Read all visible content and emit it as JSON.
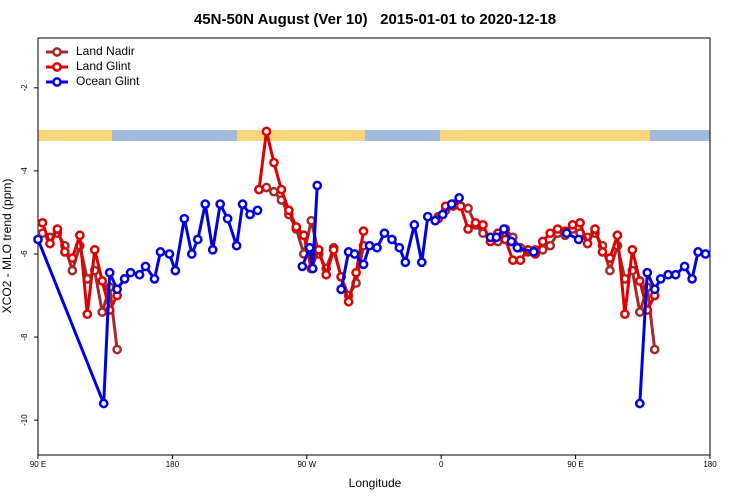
{
  "chart_data": {
    "type": "line",
    "title": "45N-50N August (Ver 10)   2015-01-01 to 2020-12-18",
    "x_label": "Longitude",
    "y_label": "XCO2 - MLO trend (ppm)",
    "xlim": [
      90,
      540
    ],
    "ylim": [
      -10.84,
      -0.8
    ],
    "xticks": [
      {
        "value": 90,
        "label": "90 E"
      },
      180,
      {
        "value": 270,
        "label": "90 W"
      },
      {
        "value": 360,
        "label": "0"
      },
      {
        "value": 450,
        "label": "90 E"
      },
      {
        "value": 540,
        "label": "180"
      }
    ],
    "yticks": [
      -2,
      -4,
      -6,
      -8,
      -10
    ],
    "legend": "upper left",
    "series": [
      {
        "name": "Land Nadir",
        "color": "#a52a2a",
        "x": [
          93,
          98,
          103,
          108,
          113,
          118,
          123,
          128,
          133,
          138,
          143,
          190,
          238,
          243,
          248,
          253,
          258,
          263,
          268,
          273,
          278,
          283,
          288,
          293,
          298,
          303,
          308,
          333,
          358,
          363,
          368,
          373,
          378,
          383,
          388,
          393,
          398,
          403,
          408,
          413,
          418,
          423,
          428,
          433,
          438,
          443,
          448,
          453,
          458,
          463,
          468,
          473,
          478,
          483,
          488,
          493,
          498,
          503
        ],
        "values": [
          -5.5,
          -5.6,
          -5.5,
          -5.8,
          -6.4,
          -5.8,
          -6.6,
          -6.4,
          -7.4,
          -6.8,
          -8.3,
          null,
          -4.45,
          -4.4,
          -4.5,
          -4.7,
          -5.05,
          -5.4,
          -6.0,
          -5.2,
          -6.0,
          -6.35,
          -5.85,
          -6.55,
          -7.0,
          -6.7,
          -5.8,
          null,
          -5.1,
          -4.95,
          -4.85,
          -4.85,
          -4.9,
          -5.3,
          -5.5,
          -5.6,
          -5.7,
          -5.4,
          -5.6,
          -5.85,
          -5.95,
          -5.9,
          -5.9,
          -5.8,
          -5.5,
          -5.55,
          -5.4,
          -5.5,
          -5.6,
          -5.5,
          -5.8,
          -6.4,
          -5.8,
          -6.6,
          -6.4,
          -7.4,
          -6.8,
          -8.3
        ]
      },
      {
        "name": "Land Glint",
        "color": "#e00000",
        "x": [
          93,
          98,
          103,
          108,
          113,
          118,
          123,
          128,
          133,
          138,
          143,
          190,
          238,
          243,
          248,
          253,
          258,
          263,
          268,
          273,
          278,
          283,
          288,
          293,
          298,
          303,
          308,
          333,
          358,
          363,
          368,
          373,
          378,
          383,
          388,
          393,
          398,
          403,
          408,
          413,
          418,
          423,
          428,
          433,
          438,
          443,
          448,
          453,
          458,
          463,
          468,
          473,
          478,
          483,
          488,
          493,
          498,
          503
        ],
        "values": [
          -5.25,
          -5.75,
          -5.4,
          -5.95,
          -6.1,
          -5.55,
          -7.45,
          -5.9,
          -6.65,
          -7.35,
          -7.0,
          null,
          -4.45,
          -3.05,
          -3.8,
          -4.45,
          -4.95,
          -5.35,
          -5.55,
          -6.35,
          -5.9,
          -6.5,
          -5.9,
          -6.55,
          -7.15,
          -6.45,
          -5.45,
          null,
          -5.15,
          -4.85,
          -4.8,
          -4.85,
          -5.4,
          -5.25,
          -5.3,
          -5.7,
          -5.5,
          -5.65,
          -6.15,
          -6.15,
          -5.9,
          -6.0,
          -5.7,
          -5.5,
          -5.4,
          -5.45,
          -5.3,
          -5.25,
          -5.75,
          -5.4,
          -5.95,
          -6.1,
          -5.55,
          -7.45,
          -5.9,
          -6.65,
          -7.35,
          -7.0
        ]
      },
      {
        "name": "Ocean Glint",
        "color": "#0000e0",
        "x": [
          90,
          134,
          138,
          143,
          148,
          152,
          158,
          162,
          168,
          172,
          178,
          182,
          188,
          193,
          197,
          202,
          207,
          212,
          217,
          223,
          227,
          232,
          237,
          250,
          267,
          272,
          274,
          277,
          285,
          293,
          298,
          302,
          308,
          312,
          317,
          322,
          327,
          332,
          336,
          342,
          347,
          351,
          356,
          361,
          367,
          372,
          380,
          393,
          397,
          402,
          407,
          411,
          422,
          430,
          444,
          452,
          480,
          493,
          498,
          503,
          507,
          512,
          517,
          523,
          528,
          532,
          537
        ],
        "values": [
          -5.65,
          -9.6,
          -6.45,
          -6.85,
          -6.6,
          -6.45,
          -6.5,
          -6.3,
          -6.6,
          -5.95,
          -6.0,
          -6.4,
          -5.15,
          -6.0,
          -5.65,
          -4.8,
          -5.9,
          -4.8,
          -5.15,
          -5.8,
          -4.8,
          -5.05,
          -4.95,
          null,
          -6.3,
          -5.85,
          -6.35,
          -4.35,
          null,
          -6.85,
          -5.95,
          -6.0,
          -6.25,
          -5.8,
          -5.85,
          -5.5,
          -5.65,
          -5.85,
          -6.2,
          -5.3,
          -6.2,
          -5.1,
          -5.2,
          -5.05,
          -4.8,
          -4.65,
          null,
          -5.6,
          -5.6,
          -5.4,
          -5.7,
          -5.85,
          -5.95,
          null,
          -5.5,
          -5.65,
          null,
          -9.6,
          -6.45,
          -6.85,
          -6.6,
          -6.5,
          -6.5,
          -6.3,
          -6.6,
          -5.95,
          -6.0
        ]
      }
    ]
  }
}
